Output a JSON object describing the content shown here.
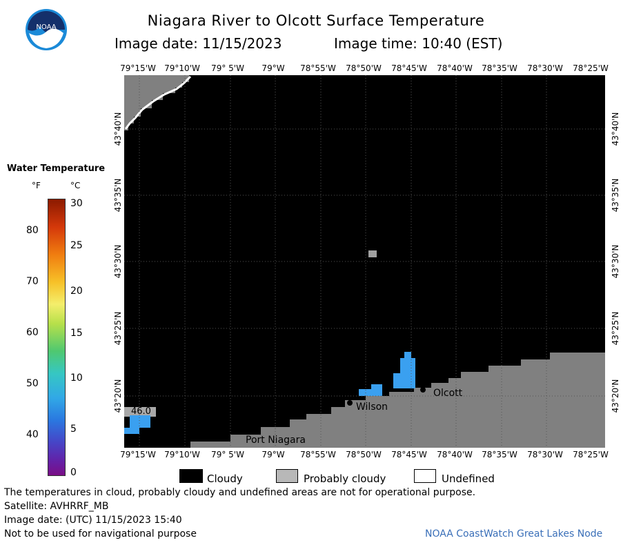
{
  "header": {
    "title": "Niagara River to Olcott Surface Temperature",
    "image_date": "Image date: 11/15/2023",
    "image_time": "Image time: 10:40 (EST)"
  },
  "logo": {
    "text": "NOAA"
  },
  "colorbar": {
    "title": "Water Temperature",
    "unit_f": "°F",
    "unit_c": "°C",
    "ticks_f": [
      "80",
      "70",
      "60",
      "50",
      "40"
    ],
    "ticks_c": [
      "30",
      "25",
      "20",
      "15",
      "10",
      "5",
      "0"
    ]
  },
  "map": {
    "lon_labels": [
      "79°15'W",
      "79°10'W",
      "79° 5'W",
      "79°W",
      "78°55'W",
      "78°50'W",
      "78°45'W",
      "78°40'W",
      "78°35'W",
      "78°30'W",
      "78°25'W"
    ],
    "lat_labels": [
      "43°40'N",
      "43°35'N",
      "43°30'N",
      "43°25'N",
      "43°20'N"
    ],
    "places": [
      "Olcott",
      "Wilson",
      "Port Niagara"
    ],
    "temp_readout": "46.0"
  },
  "legend": {
    "cloudy": "Cloudy",
    "probably_cloudy": "Probably cloudy",
    "undefined": "Undefined"
  },
  "notes": {
    "disclaimer": "The temperatures in cloud, probably cloudy and undefined areas are not for operational purpose.",
    "satellite": "Satellite: AVHRRF_MB",
    "utc_date": "Image date: (UTC) 11/15/2023  15:40",
    "nav": "Not to be used for navigational purpose",
    "credit": "NOAA CoastWatch Great Lakes Node"
  },
  "colors": {
    "cloudy": "#000000",
    "probably_cloudy": "#808080",
    "undefined": "#ffffff",
    "water_warm_blue": "#3aa0f0",
    "credit_blue": "#3a6fb8"
  }
}
